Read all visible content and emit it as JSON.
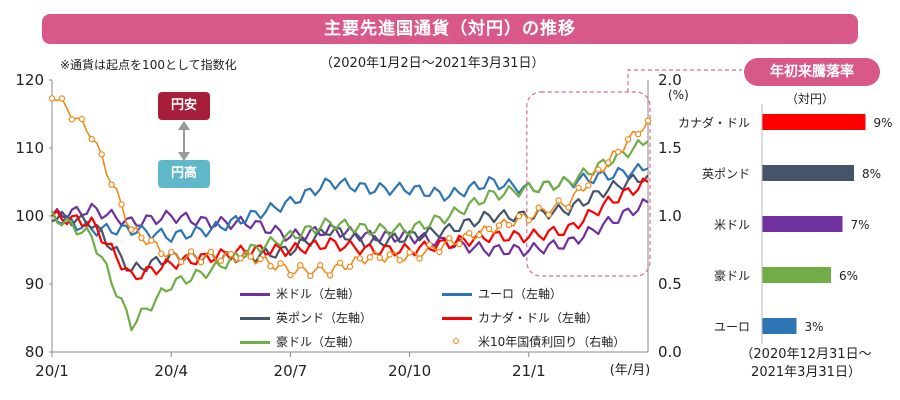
{
  "title": "主要先進国通貨（対円）の推移",
  "note": "※通貨は起点を100として指数化",
  "period": "（2020年1月2日～2021年3月31日）",
  "arrow_labels": {
    "weak_yen": "円安",
    "strong_yen": "円高"
  },
  "right_axis_unit": "(%)",
  "x_unit": "(年/月)",
  "bar_panel": {
    "title": "年初来騰落率",
    "unit": "（対円）",
    "footnote_line1": "（2020年12月31日～",
    "footnote_line2": "2021年3月31日）"
  },
  "legend": [
    {
      "label": "米ドル（左軸）",
      "color": "#7030a0"
    },
    {
      "label": "ユーロ（左軸）",
      "color": "#2e75b6"
    },
    {
      "label": "英ポンド（左軸）",
      "color": "#44546a"
    },
    {
      "label": "カナダ・ドル（左軸）",
      "color": "#ff0000"
    },
    {
      "label": "豪ドル（左軸）",
      "color": "#70ad47"
    },
    {
      "label": "米10年国債利回り（右軸）",
      "color": "#f28a1c"
    }
  ],
  "chart_data": [
    {
      "type": "line",
      "x_ticks": [
        "20/1",
        "20/4",
        "20/7",
        "20/10",
        "21/1"
      ],
      "left_axis": {
        "ylim": [
          80,
          120
        ],
        "ticks": [
          80,
          90,
          100,
          110,
          120
        ]
      },
      "right_axis": {
        "ylim": [
          0.0,
          2.0
        ],
        "ticks": [
          "0.0",
          "0.5",
          "1.0",
          "1.5",
          "2.0"
        ]
      },
      "x": [
        "20/1",
        "20/2",
        "20/3",
        "20/4",
        "20/5",
        "20/6",
        "20/7",
        "20/8",
        "20/9",
        "20/10",
        "20/11",
        "20/12",
        "21/1",
        "21/2",
        "21/3",
        "21/4"
      ],
      "series": [
        {
          "name": "米ドル（左軸）",
          "axis": "left",
          "color": "#7030a0",
          "values": [
            100,
            101,
            99,
            100,
            99,
            99,
            97,
            98,
            97,
            97,
            96,
            95,
            95,
            96,
            99,
            102
          ]
        },
        {
          "name": "ユーロ（左軸）",
          "axis": "left",
          "color": "#2e75b6",
          "values": [
            100,
            98,
            98,
            97,
            98,
            100,
            102,
            105,
            104,
            104,
            103,
            105,
            104,
            105,
            106,
            107
          ]
        },
        {
          "name": "英ポンド（左軸）",
          "axis": "left",
          "color": "#44546a",
          "values": [
            100,
            99,
            92,
            94,
            94,
            94,
            95,
            98,
            96,
            97,
            98,
            100,
            100,
            101,
            104,
            106
          ]
        },
        {
          "name": "カナダ・ドル（左軸）",
          "axis": "left",
          "color": "#ff0000",
          "values": [
            100,
            99,
            91,
            93,
            94,
            95,
            95,
            96,
            95,
            95,
            96,
            97,
            97,
            98,
            102,
            105
          ]
        },
        {
          "name": "豪ドル（左軸）",
          "axis": "left",
          "color": "#70ad47",
          "values": [
            100,
            97,
            84,
            90,
            92,
            95,
            97,
            99,
            98,
            98,
            100,
            103,
            104,
            105,
            108,
            111
          ]
        },
        {
          "name": "米10年国債利回り（右軸）",
          "axis": "right",
          "color": "#f28a1c",
          "values": [
            1.9,
            1.6,
            0.9,
            0.7,
            0.7,
            0.7,
            0.6,
            0.6,
            0.7,
            0.7,
            0.8,
            0.9,
            1.0,
            1.1,
            1.4,
            1.7
          ]
        }
      ]
    },
    {
      "type": "bar",
      "orientation": "horizontal",
      "categories": [
        "カナダ・ドル",
        "英ポンド",
        "米ドル",
        "豪ドル",
        "ユーロ"
      ],
      "values": [
        9,
        8,
        7,
        6,
        3
      ],
      "value_labels": [
        "9%",
        "8%",
        "7%",
        "6%",
        "3%"
      ],
      "colors": [
        "#ff0000",
        "#44546a",
        "#7030a0",
        "#70ad47",
        "#2e75b6"
      ],
      "xlim": [
        0,
        10
      ]
    }
  ]
}
